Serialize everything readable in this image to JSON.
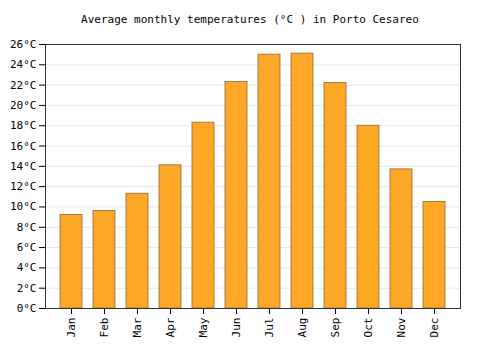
{
  "chart_data": {
    "type": "bar",
    "title": "Average monthly temperatures (°C ) in Porto Cesareo",
    "categories": [
      "Jan",
      "Feb",
      "Mar",
      "Apr",
      "May",
      "Jun",
      "Jul",
      "Aug",
      "Sep",
      "Oct",
      "Nov",
      "Dec"
    ],
    "values": [
      9.2,
      9.6,
      11.3,
      14.1,
      18.3,
      22.3,
      25.0,
      25.1,
      22.2,
      18.0,
      13.7,
      10.5
    ],
    "color": "#ffa726",
    "ylim": [
      0,
      26
    ],
    "yticks": [
      {
        "value": 0,
        "label": "0°C"
      },
      {
        "value": 2,
        "label": "2°C"
      },
      {
        "value": 4,
        "label": "4°C"
      },
      {
        "value": 6,
        "label": "6°C"
      },
      {
        "value": 8,
        "label": "8°C"
      },
      {
        "value": 10,
        "label": "10°C"
      },
      {
        "value": 12,
        "label": "12°C"
      },
      {
        "value": 14,
        "label": "14°C"
      },
      {
        "value": 16,
        "label": "16°C"
      },
      {
        "value": 18,
        "label": "18°C"
      },
      {
        "value": 20,
        "label": "20°C"
      },
      {
        "value": 22,
        "label": "22°C"
      },
      {
        "value": 24,
        "label": "24°C"
      },
      {
        "value": 26,
        "label": "26°C"
      }
    ],
    "grid": true
  }
}
